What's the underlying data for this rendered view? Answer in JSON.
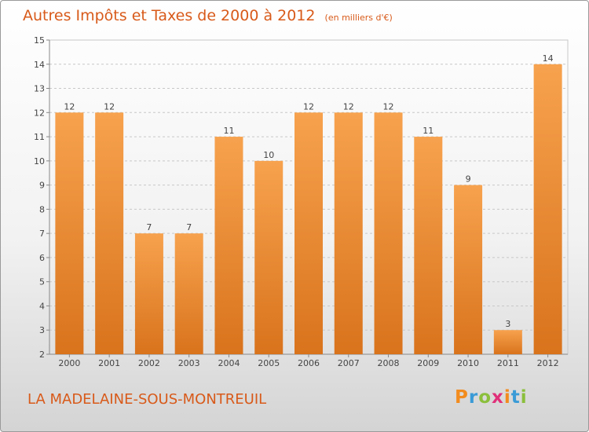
{
  "title": "Autres Impôts et Taxes de 2000 à 2012",
  "unit_label": "(en milliers d'€)",
  "footer_label": "LA MADELAINE-SOUS-MONTREUIL",
  "logo": {
    "text": "Proxiti",
    "letter_colors": [
      "#f28c1e",
      "#3a9bd6",
      "#8bbf3c",
      "#e0307a",
      "#f28c1e",
      "#3a9bd6",
      "#8bbf3c"
    ]
  },
  "colors": {
    "bar_light": "#f7a24e",
    "bar_dark": "#d9731c",
    "title": "#d85a1a",
    "grid": "#c8c8c8"
  },
  "chart_data": {
    "type": "bar",
    "categories": [
      "2000",
      "2001",
      "2002",
      "2003",
      "2004",
      "2005",
      "2006",
      "2007",
      "2008",
      "2009",
      "2010",
      "2011",
      "2012"
    ],
    "values": [
      12,
      12,
      7,
      7,
      11,
      10,
      12,
      12,
      12,
      11,
      9,
      3,
      14
    ],
    "yticks": [
      2,
      3,
      4,
      5,
      6,
      7,
      8,
      9,
      10,
      11,
      12,
      13,
      14,
      15
    ],
    "ylim": [
      2,
      15
    ],
    "grid": true
  }
}
